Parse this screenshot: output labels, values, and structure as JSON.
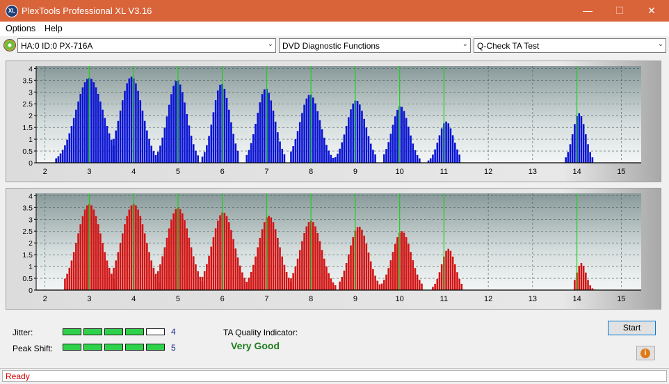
{
  "window": {
    "title": "PlexTools Professional XL V3.16",
    "icon_text": "XL",
    "minimize": "—",
    "maximize": "☐",
    "close": "✕"
  },
  "menu": {
    "items": [
      "Options",
      "Help"
    ]
  },
  "toolbar": {
    "drive": "HA:0 ID:0  PX-716A",
    "function": "DVD Diagnostic Functions",
    "test": "Q-Check TA Test"
  },
  "charts": {
    "x_ticks": [
      2,
      3,
      4,
      5,
      6,
      7,
      8,
      9,
      10,
      11,
      12,
      13,
      14,
      15
    ],
    "y_ticks": [
      "4",
      "3.5",
      "3",
      "2.5",
      "2",
      "1.5",
      "1",
      "0.5",
      "0"
    ],
    "green_lines_x": [
      3,
      4,
      5,
      6,
      7,
      8,
      9,
      10,
      11,
      14
    ],
    "colors": {
      "top": "#0a14d2",
      "bottom": "#d21414",
      "marker": "#19d219"
    }
  },
  "chart_data": [
    {
      "type": "bar",
      "name": "top",
      "xlim": [
        1.8,
        15.45
      ],
      "ylim": [
        0,
        4.1
      ],
      "peaks": [
        {
          "center": 3.0,
          "height": 3.6,
          "left": 2.25,
          "right": 3.55
        },
        {
          "center": 3.95,
          "height": 3.65,
          "left": 3.5,
          "right": 4.55
        },
        {
          "center": 4.98,
          "height": 3.5,
          "left": 4.55,
          "right": 5.45
        },
        {
          "center": 5.98,
          "height": 3.35,
          "left": 5.55,
          "right": 6.35
        },
        {
          "center": 6.98,
          "height": 3.15,
          "left": 6.55,
          "right": 7.4
        },
        {
          "center": 7.98,
          "height": 2.9,
          "left": 7.55,
          "right": 8.5
        },
        {
          "center": 9.02,
          "height": 2.65,
          "left": 8.55,
          "right": 9.45
        },
        {
          "center": 10.02,
          "height": 2.4,
          "left": 9.65,
          "right": 10.45
        },
        {
          "center": 11.05,
          "height": 1.75,
          "left": 10.65,
          "right": 11.35
        },
        {
          "center": 14.05,
          "height": 2.1,
          "left": 13.75,
          "right": 14.35
        }
      ]
    },
    {
      "type": "bar",
      "name": "bottom",
      "xlim": [
        1.8,
        15.45
      ],
      "ylim": [
        0,
        4.1
      ],
      "peaks": [
        {
          "center": 3.0,
          "height": 3.65,
          "left": 2.45,
          "right": 3.6
        },
        {
          "center": 4.0,
          "height": 3.65,
          "left": 3.45,
          "right": 4.6
        },
        {
          "center": 5.0,
          "height": 3.5,
          "left": 4.5,
          "right": 5.6
        },
        {
          "center": 6.02,
          "height": 3.3,
          "left": 5.5,
          "right": 6.55
        },
        {
          "center": 7.05,
          "height": 3.15,
          "left": 6.55,
          "right": 7.55
        },
        {
          "center": 8.0,
          "height": 2.95,
          "left": 7.55,
          "right": 8.55
        },
        {
          "center": 9.08,
          "height": 2.7,
          "left": 8.65,
          "right": 9.55
        },
        {
          "center": 10.05,
          "height": 2.5,
          "left": 9.6,
          "right": 10.5
        },
        {
          "center": 11.1,
          "height": 1.75,
          "left": 10.75,
          "right": 11.4
        },
        {
          "center": 14.1,
          "height": 1.15,
          "left": 13.95,
          "right": 14.4
        }
      ]
    }
  ],
  "results": {
    "jitter_label": "Jitter:",
    "jitter_value": "4",
    "jitter_level": 4,
    "peak_shift_label": "Peak Shift:",
    "peak_shift_value": "5",
    "peak_shift_level": 5,
    "segments_total": 5,
    "ta_label": "TA Quality Indicator:",
    "ta_value": "Very Good"
  },
  "buttons": {
    "start": "Start",
    "info": "i"
  },
  "status": {
    "text": "Ready"
  }
}
